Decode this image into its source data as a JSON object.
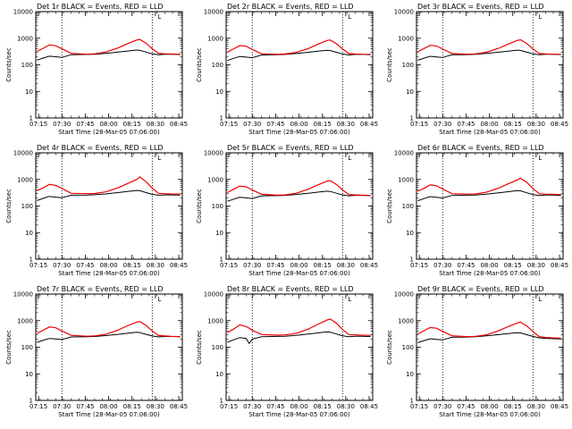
{
  "chart_data": {
    "type": "line",
    "layout": "3x3 grid",
    "series_colors": {
      "events": "#000000",
      "lld": "#ee0000"
    },
    "marker_color": "#000000",
    "ylog": true,
    "ylim": [
      1,
      10000
    ],
    "ytick_labels": [
      "1",
      "10",
      "100",
      "1000",
      "10000"
    ],
    "xlim_minutes": [
      7.2,
      101.3
    ],
    "xtick_labels": [
      "07:15",
      "07:30",
      "07:45",
      "08:00",
      "08:15",
      "08:30",
      "08:45"
    ],
    "xlabel": "Start Time (28-Mar-05 07:06:00)",
    "ylabel": "Counts/sec",
    "flag_label": "L",
    "panels": [
      {
        "title": "Det 1r BLACK = Events, RED = LLD",
        "vlines_minutes": [
          24,
          82
        ],
        "x": [
          8,
          12,
          16,
          20,
          24,
          30,
          40,
          45,
          52,
          60,
          66,
          72,
          74,
          78,
          82,
          86,
          90,
          94,
          100
        ],
        "lld": [
          320,
          420,
          560,
          520,
          400,
          270,
          250,
          260,
          300,
          430,
          620,
          850,
          900,
          650,
          400,
          270,
          260,
          255,
          250
        ],
        "events": [
          150,
          180,
          210,
          200,
          190,
          240,
          245,
          250,
          270,
          300,
          330,
          360,
          350,
          300,
          260,
          240,
          250,
          250,
          245
        ]
      },
      {
        "title": "Det 2r BLACK = Events, RED = LLD",
        "vlines_minutes": [
          24,
          82
        ],
        "x": [
          8,
          12,
          16,
          20,
          24,
          30,
          40,
          45,
          52,
          60,
          66,
          72,
          74,
          78,
          82,
          86,
          90,
          94,
          100
        ],
        "lld": [
          300,
          400,
          530,
          500,
          380,
          260,
          245,
          255,
          290,
          410,
          590,
          820,
          860,
          620,
          390,
          265,
          255,
          250,
          245
        ],
        "events": [
          145,
          175,
          205,
          195,
          185,
          235,
          240,
          245,
          265,
          295,
          325,
          350,
          345,
          295,
          255,
          235,
          245,
          245,
          240
        ]
      },
      {
        "title": "Det 3r BLACK = Events, RED = LLD",
        "vlines_minutes": [
          24,
          82
        ],
        "x": [
          8,
          12,
          16,
          20,
          24,
          30,
          40,
          45,
          52,
          60,
          66,
          72,
          74,
          78,
          82,
          86,
          90,
          94,
          100
        ],
        "lld": [
          310,
          410,
          540,
          510,
          390,
          265,
          250,
          258,
          295,
          420,
          600,
          830,
          870,
          630,
          395,
          268,
          258,
          252,
          248
        ],
        "events": [
          148,
          178,
          208,
          198,
          188,
          238,
          242,
          248,
          268,
          298,
          328,
          355,
          348,
          298,
          258,
          238,
          248,
          248,
          242
        ]
      },
      {
        "title": "Det 4r BLACK = Events, RED = LLD",
        "vlines_minutes": [
          24,
          82
        ],
        "x": [
          8,
          12,
          16,
          20,
          24,
          30,
          40,
          45,
          52,
          60,
          66,
          72,
          74,
          78,
          82,
          86,
          90,
          94,
          100
        ],
        "lld": [
          380,
          480,
          650,
          600,
          460,
          300,
          290,
          295,
          340,
          480,
          700,
          1000,
          1250,
          820,
          470,
          300,
          290,
          285,
          280
        ],
        "events": [
          160,
          195,
          230,
          215,
          205,
          255,
          260,
          265,
          285,
          320,
          350,
          385,
          380,
          320,
          275,
          255,
          262,
          262,
          258
        ]
      },
      {
        "title": "Det 5r BLACK = Events, RED = LLD",
        "vlines_minutes": [
          24,
          82
        ],
        "x": [
          8,
          12,
          16,
          20,
          24,
          30,
          40,
          45,
          52,
          60,
          66,
          72,
          74,
          78,
          82,
          86,
          90,
          94,
          100
        ],
        "lld": [
          320,
          430,
          560,
          530,
          400,
          275,
          255,
          262,
          300,
          430,
          620,
          860,
          900,
          650,
          400,
          270,
          262,
          255,
          250
        ],
        "events": [
          150,
          182,
          212,
          202,
          192,
          242,
          246,
          252,
          272,
          302,
          332,
          362,
          352,
          302,
          262,
          242,
          252,
          252,
          246
        ]
      },
      {
        "title": "Det 6r BLACK = Events, RED = LLD",
        "vlines_minutes": [
          24,
          82
        ],
        "x": [
          8,
          12,
          16,
          20,
          24,
          30,
          40,
          45,
          52,
          60,
          66,
          72,
          74,
          78,
          82,
          86,
          90,
          94,
          100
        ],
        "lld": [
          360,
          460,
          620,
          580,
          440,
          290,
          280,
          285,
          330,
          470,
          680,
          960,
          1100,
          780,
          450,
          290,
          280,
          275,
          270
        ],
        "events": [
          158,
          190,
          225,
          212,
          200,
          250,
          255,
          260,
          280,
          315,
          345,
          378,
          372,
          315,
          270,
          250,
          258,
          258,
          252
        ]
      },
      {
        "title": "Det 7r BLACK = Events, RED = LLD",
        "vlines_minutes": [
          24,
          82
        ],
        "x": [
          8,
          12,
          16,
          20,
          24,
          30,
          40,
          45,
          52,
          60,
          66,
          72,
          74,
          78,
          82,
          86,
          90,
          94,
          100
        ],
        "lld": [
          330,
          440,
          580,
          540,
          410,
          280,
          260,
          268,
          305,
          440,
          640,
          880,
          920,
          660,
          410,
          275,
          265,
          258,
          252
        ],
        "events": [
          152,
          184,
          214,
          204,
          194,
          244,
          248,
          254,
          274,
          304,
          334,
          365,
          355,
          305,
          265,
          244,
          254,
          254,
          248
        ]
      },
      {
        "title": "Det 8r BLACK = Events, RED = LLD",
        "vlines_minutes": [
          24,
          82
        ],
        "x": [
          8,
          12,
          16,
          20,
          22,
          24,
          30,
          40,
          45,
          52,
          60,
          66,
          72,
          74,
          78,
          82,
          86,
          90,
          94,
          100
        ],
        "lld": [
          360,
          480,
          700,
          600,
          520,
          430,
          300,
          285,
          290,
          330,
          480,
          720,
          1050,
          1150,
          800,
          460,
          300,
          290,
          285,
          280
        ],
        "events": [
          155,
          190,
          230,
          215,
          140,
          200,
          250,
          255,
          260,
          280,
          315,
          345,
          378,
          370,
          315,
          270,
          250,
          258,
          258,
          252
        ]
      },
      {
        "title": "Det 9r BLACK = Events, RED = LLD",
        "vlines_minutes": [
          24,
          82
        ],
        "x": [
          8,
          12,
          16,
          20,
          24,
          30,
          40,
          45,
          52,
          60,
          66,
          72,
          74,
          78,
          82,
          86,
          90,
          94,
          100
        ],
        "lld": [
          310,
          420,
          550,
          520,
          395,
          270,
          250,
          256,
          292,
          415,
          600,
          820,
          880,
          630,
          390,
          250,
          235,
          225,
          220
        ],
        "events": [
          148,
          178,
          208,
          198,
          188,
          238,
          242,
          248,
          268,
          298,
          328,
          352,
          346,
          296,
          256,
          225,
          215,
          210,
          205
        ]
      }
    ]
  }
}
